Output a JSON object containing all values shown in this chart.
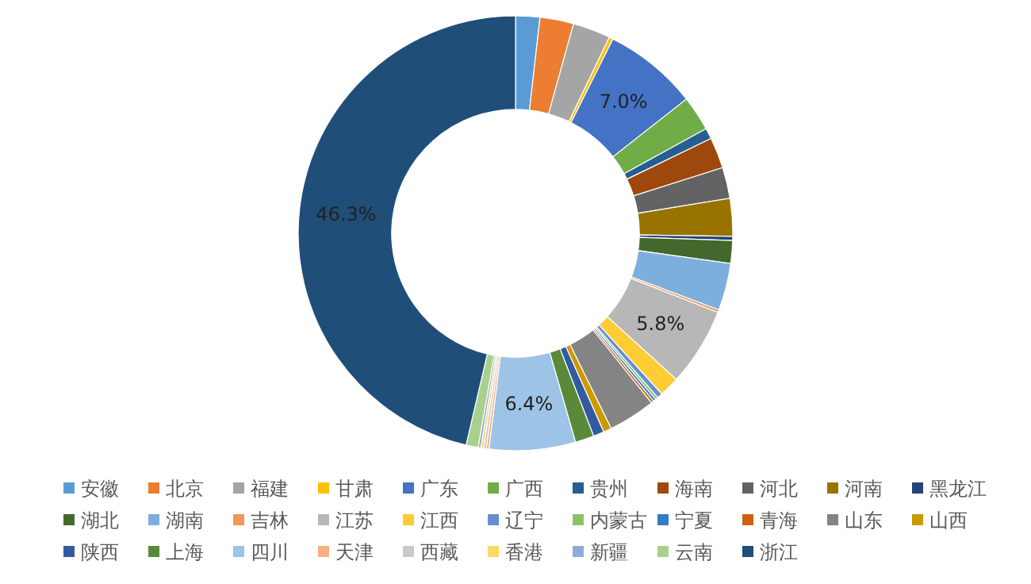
{
  "chart_data": {
    "type": "donut",
    "categories": [
      "安徽",
      "北京",
      "福建",
      "甘肃",
      "广东",
      "广西",
      "贵州",
      "海南",
      "河北",
      "河南",
      "黑龙江",
      "湖北",
      "湖南",
      "吉林",
      "江苏",
      "江西",
      "辽宁",
      "内蒙古",
      "宁夏",
      "青海",
      "山东",
      "山西",
      "陕西",
      "上海",
      "四川",
      "天津",
      "西藏",
      "香港",
      "新疆",
      "云南",
      "浙江"
    ],
    "values": [
      1.8,
      2.5,
      2.8,
      0.3,
      7.0,
      2.6,
      0.8,
      2.3,
      2.3,
      2.8,
      0.3,
      1.7,
      3.5,
      0.2,
      5.8,
      1.5,
      0.4,
      0.2,
      0.2,
      0.2,
      3.5,
      0.6,
      0.8,
      1.4,
      6.4,
      0.2,
      0.2,
      0.2,
      0.2,
      0.9,
      46.3
    ],
    "value_labels": [
      null,
      null,
      null,
      null,
      "7.0%",
      null,
      null,
      null,
      null,
      null,
      null,
      null,
      null,
      null,
      "5.8%",
      null,
      null,
      null,
      null,
      null,
      null,
      null,
      null,
      null,
      "6.4%",
      null,
      null,
      null,
      null,
      null,
      "46.3%"
    ],
    "colors": [
      "#5b9bd5",
      "#ed7d31",
      "#a5a5a5",
      "#ffc000",
      "#4472c4",
      "#70ad47",
      "#255e91",
      "#9e480e",
      "#636363",
      "#997300",
      "#264478",
      "#43682b",
      "#7cafdd",
      "#f1975a",
      "#b7b7b7",
      "#ffcd33",
      "#698ed0",
      "#8cc168",
      "#327dc2",
      "#d26012",
      "#848484",
      "#cc9a00",
      "#335aa1",
      "#5a8a39",
      "#9dc3e6",
      "#f4b183",
      "#c9c9c9",
      "#ffd966",
      "#8faadc",
      "#a9d18e",
      "#1f4e79"
    ],
    "legend": "bottom"
  }
}
